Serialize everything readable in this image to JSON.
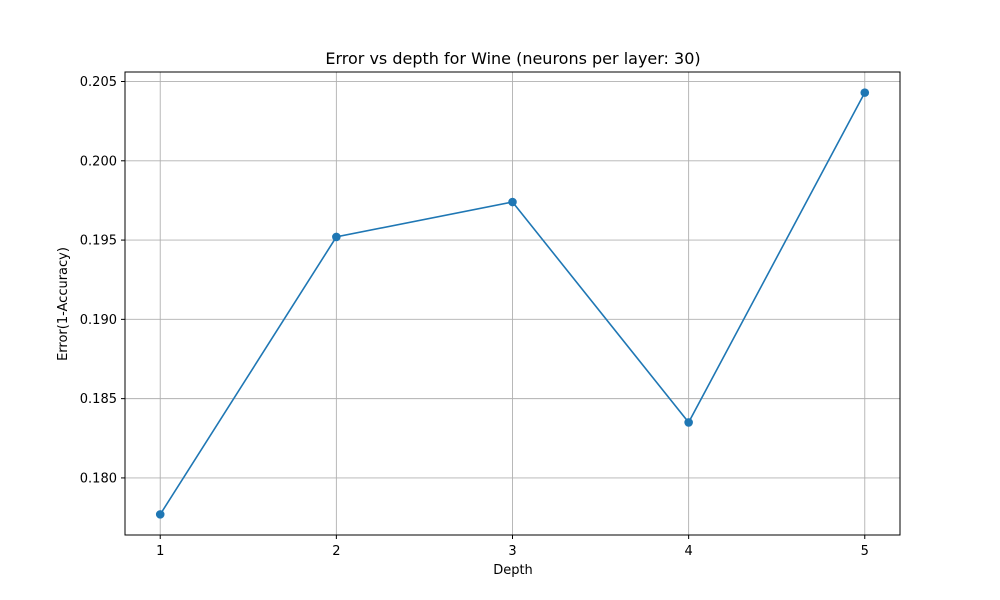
{
  "chart_data": {
    "type": "line",
    "title": "Error vs depth for Wine (neurons per layer: 30)",
    "xlabel": "Depth",
    "ylabel": "Error(1-Accuracy)",
    "x": [
      1,
      2,
      3,
      4,
      5
    ],
    "xticks": [
      "1",
      "2",
      "3",
      "4",
      "5"
    ],
    "yticks": [
      0.18,
      0.185,
      0.19,
      0.195,
      0.2,
      0.205
    ],
    "ytick_labels": [
      "0.180",
      "0.185",
      "0.190",
      "0.195",
      "0.200",
      "0.205"
    ],
    "xlim": [
      0.8,
      5.2
    ],
    "ylim": [
      0.1764,
      0.2056
    ],
    "grid": true,
    "series": [
      {
        "values": [
          0.1777,
          0.1952,
          0.1974,
          0.1835,
          0.2043
        ],
        "color": "#1f77b4",
        "marker": "circle"
      }
    ]
  }
}
